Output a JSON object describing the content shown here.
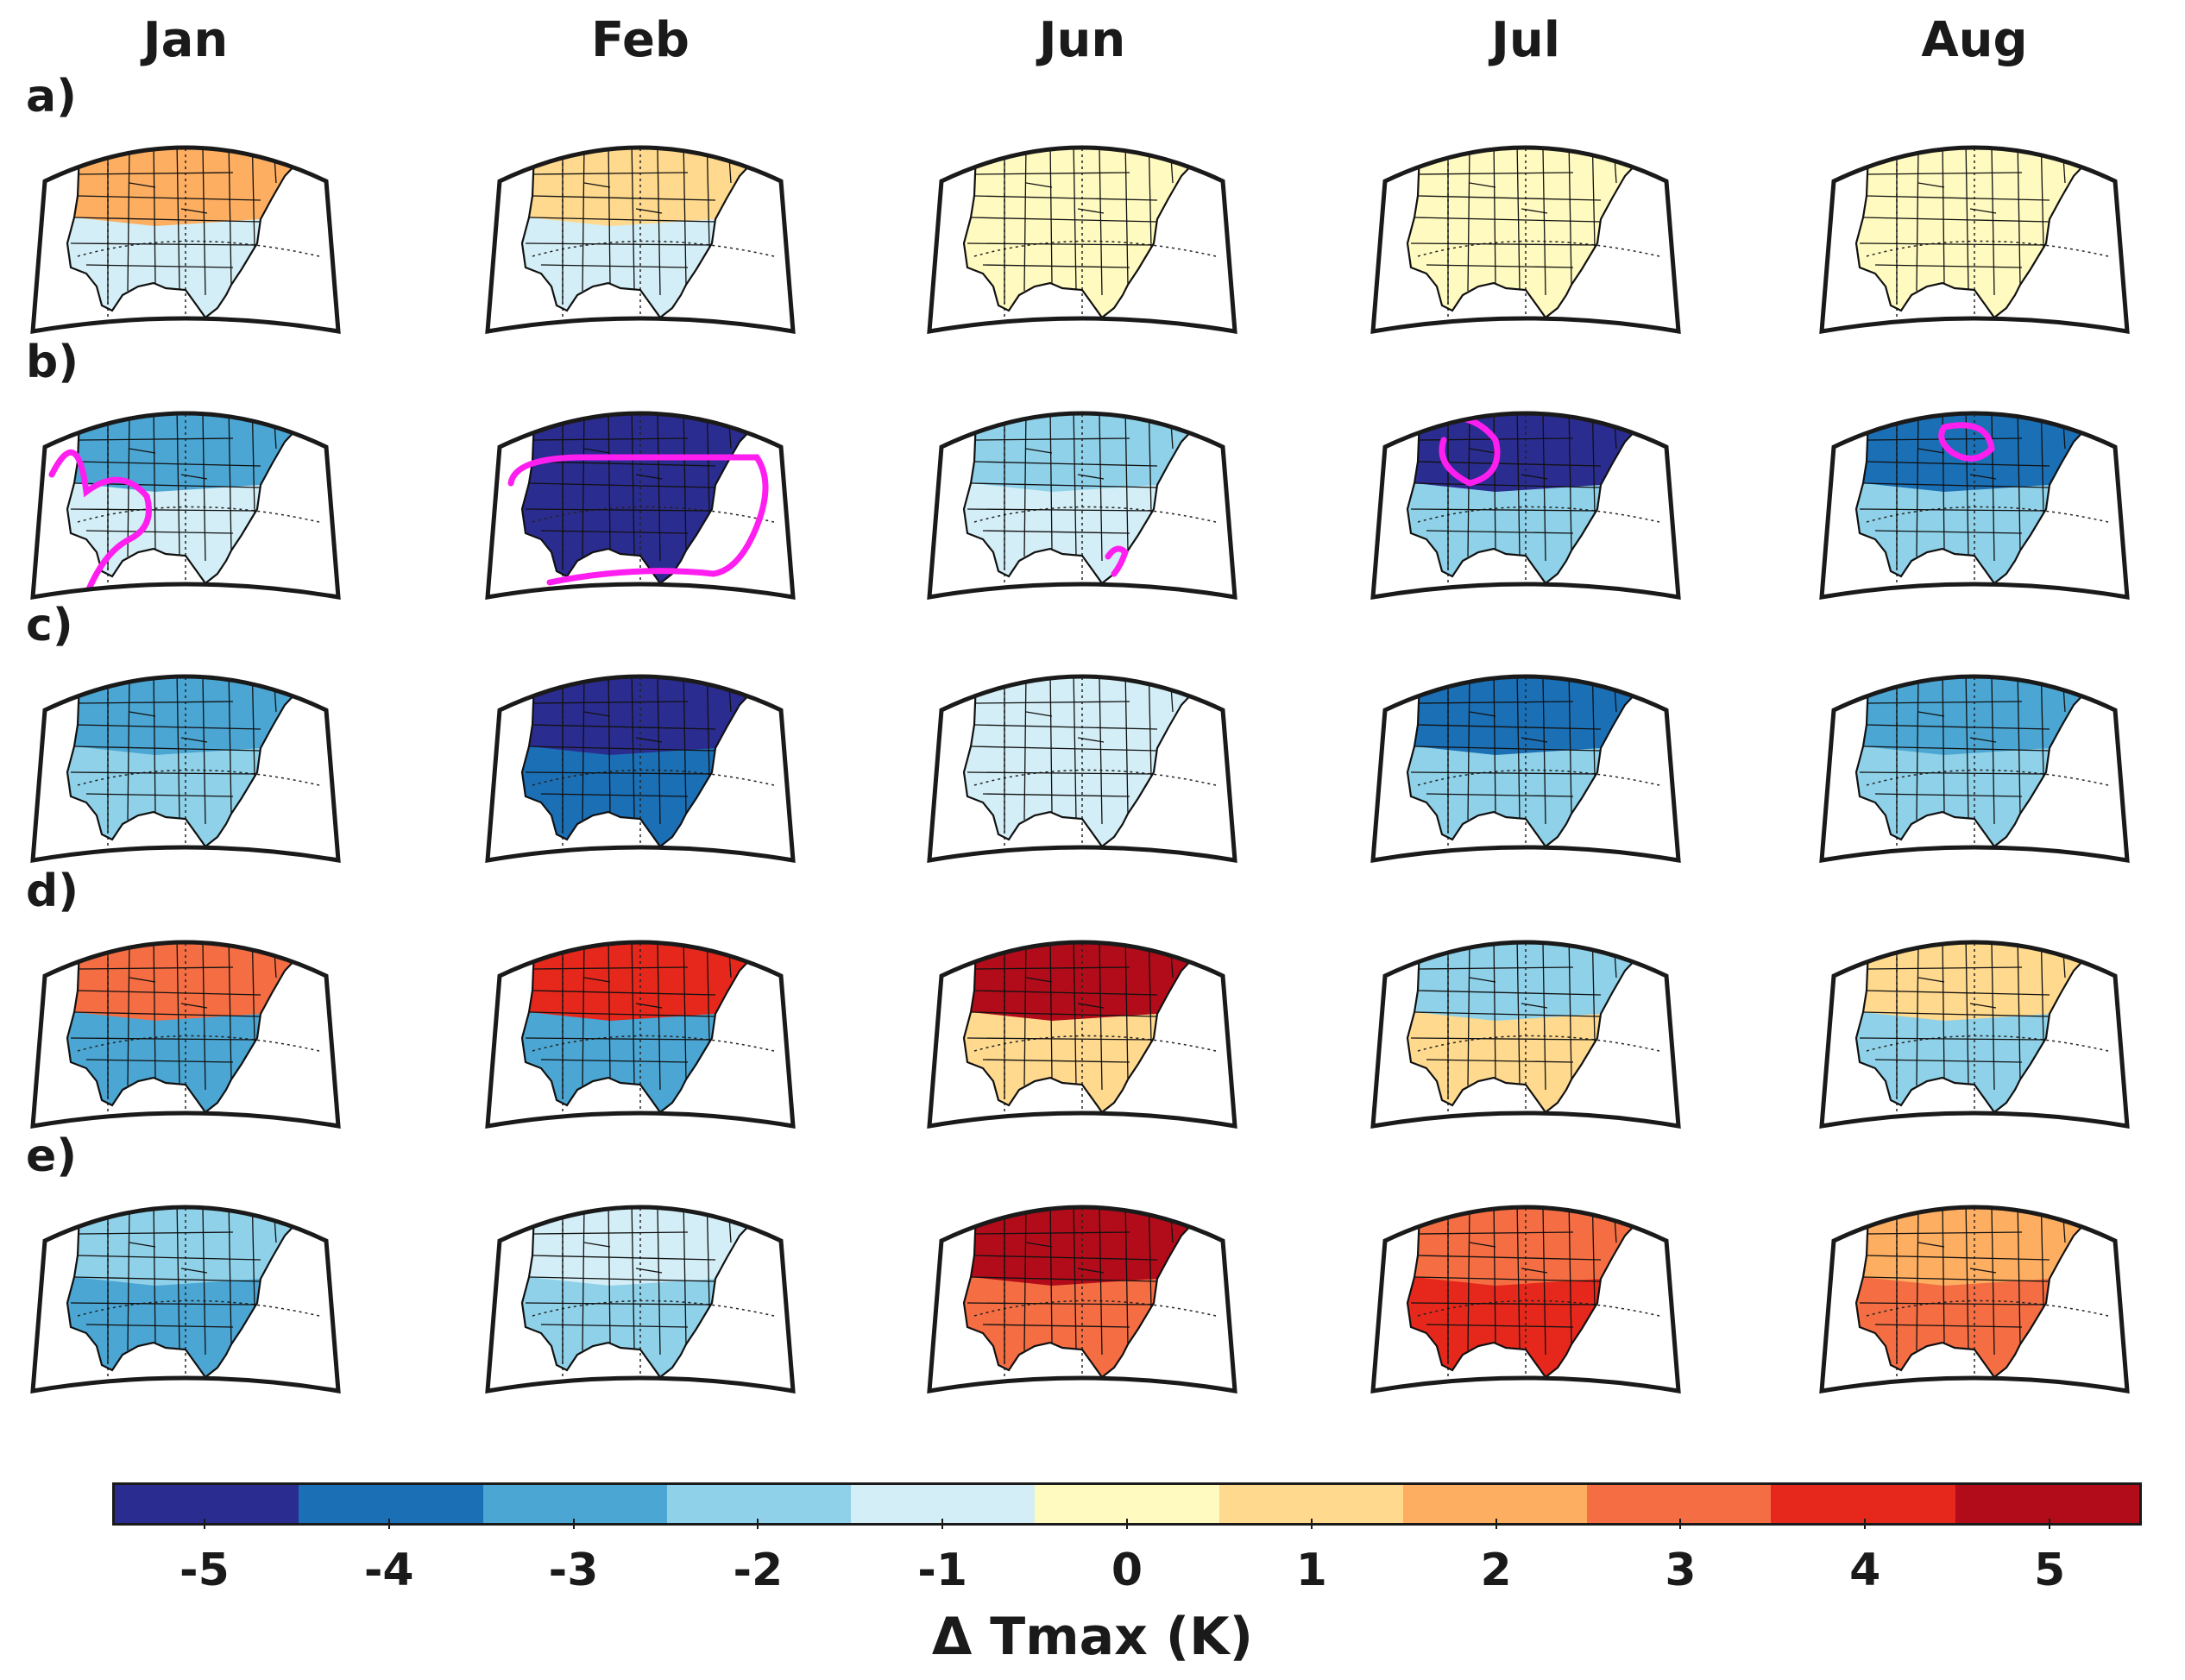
{
  "chart_data": {
    "type": "heatmap",
    "description_units": "K",
    "columns": [
      "Jan",
      "Feb",
      "Jun",
      "Jul",
      "Aug"
    ],
    "rows": [
      "a)",
      "b)",
      "c)",
      "d)",
      "e)"
    ],
    "colorbar": {
      "label": "Δ Tmax (K)",
      "range": [
        -5.5,
        5.5
      ],
      "ticks": [
        "-5",
        "-4",
        "-3",
        "-2",
        "-1",
        "0",
        "1",
        "2",
        "3",
        "4",
        "5"
      ],
      "tick_values": [
        -5,
        -4,
        -3,
        -2,
        -1,
        0,
        1,
        2,
        3,
        4,
        5
      ],
      "colors": [
        "#2b2c8f",
        "#1b6fb5",
        "#4ba6d3",
        "#8fd1e8",
        "#d3eef6",
        "#fffac0",
        "#fed98e",
        "#fdae61",
        "#f46d43",
        "#e6281c",
        "#b20c1a"
      ]
    },
    "panels": [
      {
        "row": "a)",
        "col": "Jan",
        "north": 2,
        "south": -1,
        "contour": false
      },
      {
        "row": "a)",
        "col": "Feb",
        "north": 1,
        "south": -1,
        "contour": false
      },
      {
        "row": "a)",
        "col": "Jun",
        "north": 0,
        "south": 0,
        "contour": false
      },
      {
        "row": "a)",
        "col": "Jul",
        "north": 0,
        "south": 0,
        "contour": false
      },
      {
        "row": "a)",
        "col": "Aug",
        "north": 0,
        "south": 0,
        "contour": false
      },
      {
        "row": "b)",
        "col": "Jan",
        "north": -3,
        "south": -1,
        "contour": true
      },
      {
        "row": "b)",
        "col": "Feb",
        "north": -5,
        "south": -5,
        "contour": true
      },
      {
        "row": "b)",
        "col": "Jun",
        "north": -2,
        "south": -1,
        "contour": true
      },
      {
        "row": "b)",
        "col": "Jul",
        "north": -5,
        "south": -2,
        "contour": true
      },
      {
        "row": "b)",
        "col": "Aug",
        "north": -4,
        "south": -2,
        "contour": true
      },
      {
        "row": "c)",
        "col": "Jan",
        "north": -3,
        "south": -2,
        "contour": false
      },
      {
        "row": "c)",
        "col": "Feb",
        "north": -5,
        "south": -4,
        "contour": false
      },
      {
        "row": "c)",
        "col": "Jun",
        "north": -1,
        "south": -1,
        "contour": false
      },
      {
        "row": "c)",
        "col": "Jul",
        "north": -4,
        "south": -2,
        "contour": false
      },
      {
        "row": "c)",
        "col": "Aug",
        "north": -3,
        "south": -2,
        "contour": false
      },
      {
        "row": "d)",
        "col": "Jan",
        "north": 3,
        "south": -3,
        "contour": false
      },
      {
        "row": "d)",
        "col": "Feb",
        "north": 4,
        "south": -3,
        "contour": false
      },
      {
        "row": "d)",
        "col": "Jun",
        "north": 5,
        "south": 1,
        "contour": false
      },
      {
        "row": "d)",
        "col": "Jul",
        "north": -2,
        "south": 1,
        "contour": false
      },
      {
        "row": "d)",
        "col": "Aug",
        "north": 1,
        "south": -2,
        "contour": false
      },
      {
        "row": "e)",
        "col": "Jan",
        "north": -2,
        "south": -3,
        "contour": false
      },
      {
        "row": "e)",
        "col": "Feb",
        "north": -1,
        "south": -2,
        "contour": false
      },
      {
        "row": "e)",
        "col": "Jun",
        "north": 5,
        "south": 3,
        "contour": false
      },
      {
        "row": "e)",
        "col": "Jul",
        "north": 3,
        "south": 4,
        "contour": false
      },
      {
        "row": "e)",
        "col": "Aug",
        "north": 2,
        "south": 3,
        "contour": false
      }
    ]
  }
}
